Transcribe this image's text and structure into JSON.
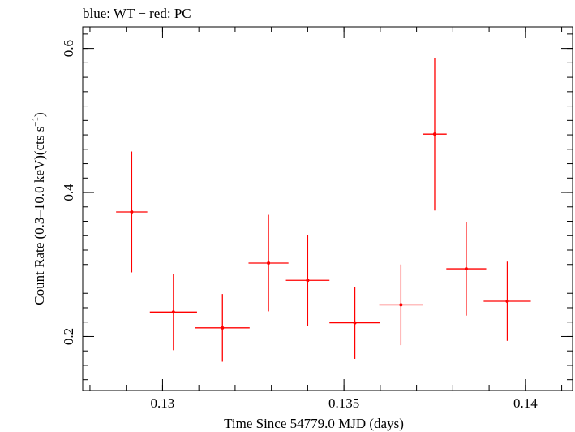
{
  "chart_data": {
    "type": "scatter",
    "title": "blue: WT − red: PC",
    "xlabel": "Time Since 54779.0 MJD (days)",
    "ylabel_main": "Count Rate (0.3–10.0 keV)(cts s",
    "ylabel_sup": "−1",
    "ylabel_close": ")",
    "xlim": [
      0.1278,
      0.1413
    ],
    "ylim": [
      0.125,
      0.63
    ],
    "x_ticks": [
      0.13,
      0.135,
      0.14
    ],
    "x_tick_labels": [
      "0.13",
      "0.135",
      "0.14"
    ],
    "y_ticks": [
      0.2,
      0.4,
      0.6
    ],
    "y_tick_labels": [
      "0.2",
      "0.4",
      "0.6"
    ],
    "series_color": "#ff0000",
    "points": [
      {
        "x": 0.12915,
        "xerr": 0.00043,
        "y": 0.373,
        "yerr_lo": 0.084,
        "yerr_hi": 0.084
      },
      {
        "x": 0.1303,
        "xerr": 0.00065,
        "y": 0.234,
        "yerr_lo": 0.053,
        "yerr_hi": 0.053
      },
      {
        "x": 0.13165,
        "xerr": 0.00075,
        "y": 0.212,
        "yerr_lo": 0.047,
        "yerr_hi": 0.047
      },
      {
        "x": 0.13292,
        "xerr": 0.00055,
        "y": 0.302,
        "yerr_lo": 0.067,
        "yerr_hi": 0.067
      },
      {
        "x": 0.134,
        "xerr": 0.0006,
        "y": 0.278,
        "yerr_lo": 0.063,
        "yerr_hi": 0.063
      },
      {
        "x": 0.1353,
        "xerr": 0.0007,
        "y": 0.219,
        "yerr_lo": 0.05,
        "yerr_hi": 0.05
      },
      {
        "x": 0.13657,
        "xerr": 0.0006,
        "y": 0.244,
        "yerr_lo": 0.056,
        "yerr_hi": 0.056
      },
      {
        "x": 0.1375,
        "xerr": 0.00033,
        "y": 0.481,
        "yerr_lo": 0.106,
        "yerr_hi": 0.106
      },
      {
        "x": 0.13837,
        "xerr": 0.00055,
        "y": 0.294,
        "yerr_lo": 0.065,
        "yerr_hi": 0.065
      },
      {
        "x": 0.1395,
        "xerr": 0.00065,
        "y": 0.249,
        "yerr_lo": 0.055,
        "yerr_hi": 0.055
      }
    ]
  }
}
